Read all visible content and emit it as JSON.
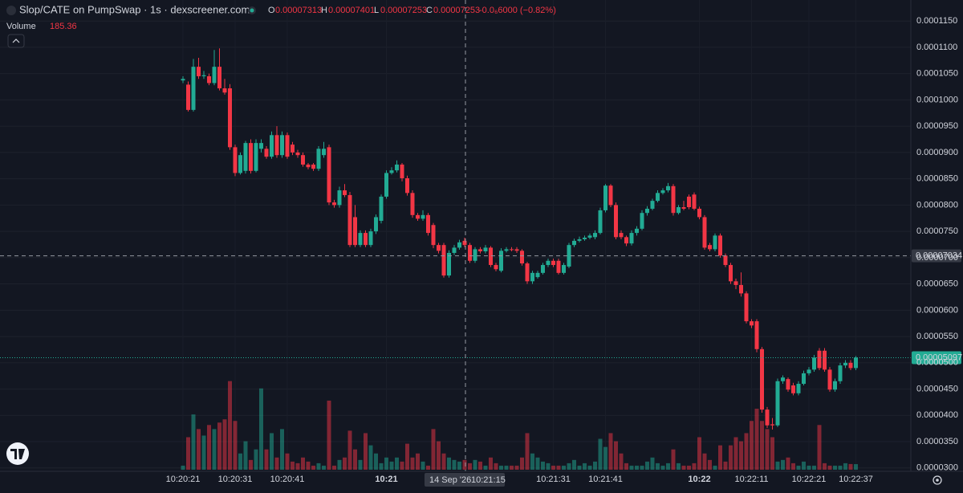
{
  "chart_data": {
    "type": "candlestick",
    "title": "Slop/CATE on PumpSwap · 1s · dexscreener.com",
    "legend": {
      "o_label": "O",
      "open": 7.313e-05,
      "h_label": "H",
      "high": 7.401e-05,
      "l_label": "L",
      "low": 7.253e-05,
      "c_label": "C",
      "close": 7.253e-05,
      "change": "-0.0₆6000 (−0.82%)"
    },
    "volume_label": "Volume",
    "categories": [
      "10:20:21",
      null,
      null,
      null,
      null,
      null,
      null,
      null,
      null,
      null,
      "10:20:31",
      null,
      null,
      null,
      null,
      null,
      null,
      null,
      null,
      null,
      "10:20:41",
      null,
      null,
      null,
      null,
      null,
      null,
      null,
      null,
      null,
      null,
      null,
      null,
      null,
      null,
      null,
      null,
      null,
      null,
      "10:21",
      null,
      null,
      null,
      null,
      null,
      null,
      null,
      null,
      null,
      null,
      null,
      null,
      null,
      null,
      null,
      null,
      null,
      null,
      null,
      null,
      null,
      null,
      null,
      null,
      null,
      null,
      null,
      null,
      null,
      null,
      null,
      "10:21:31",
      null,
      null,
      null,
      null,
      null,
      null,
      null,
      null,
      null,
      "10:21:41",
      null,
      null,
      null,
      null,
      null,
      null,
      null,
      null,
      null,
      null,
      null,
      null,
      null,
      null,
      null,
      null,
      null,
      "10:22",
      null,
      null,
      null,
      null,
      null,
      null,
      null,
      null,
      null,
      "10:22:11",
      null,
      null,
      null,
      null,
      null,
      null,
      null,
      null,
      null,
      null,
      "10:22:21",
      null,
      null,
      null,
      null,
      null,
      null,
      null,
      null,
      "10:22:37"
    ],
    "open": [
      0.0001037,
      0.0001029,
      9.81e-05,
      0.0001063,
      0.0001045,
      0.0001045,
      0.0001032,
      0.0001063,
      0.0001022,
      0.0001022,
      9.1e-05,
      8.61e-05,
      8.65e-05,
      9.18e-05,
      8.65e-05,
      9.07e-05,
      9.07e-05,
      8.92e-05,
      9.33e-05,
      8.95e-05,
      9.33e-05,
      9.15e-05,
      9e-05,
      8.95e-05,
      8.77e-05,
      8.77e-05,
      8.69e-05,
      8.95e-05,
      9.1e-05,
      8.05e-05,
      8e-05,
      8.28e-05,
      8.19e-05,
      7.77e-05,
      7.24e-05,
      7.47e-05,
      7.24e-05,
      7.5e-05,
      7.7e-05,
      8.16e-05,
      8.61e-05,
      8.66e-05,
      8.77e-05,
      8.51e-05,
      8.23e-05,
      7.81e-05,
      7.74e-05,
      7.81e-05,
      7.62e-05,
      7.24e-05,
      7.24e-05,
      6.66e-05,
      7.09e-05,
      7.19e-05,
      7.32e-05,
      7.24e-05,
      6.94e-05,
      7.16e-05,
      7.12e-05,
      7.19e-05,
      6.86e-05,
      6.75e-05,
      7.13e-05,
      7.16e-05,
      7.16e-05,
      7.13e-05,
      6.89e-05,
      6.55e-05,
      6.63e-05,
      6.71e-05,
      6.86e-05,
      6.94e-05,
      6.94e-05,
      6.71e-05,
      6.83e-05,
      7.24e-05,
      7.32e-05,
      7.35e-05,
      7.38e-05,
      7.39e-05,
      7.47e-05,
      7.9e-05,
      8.37e-05,
      8e-05,
      7.47e-05,
      7.39e-05,
      7.27e-05,
      7.47e-05,
      7.55e-05,
      7.85e-05,
      7.93e-05,
      8.08e-05,
      8.23e-05,
      8.28e-05,
      8.36e-05,
      7.85e-05,
      7.96e-05,
      8.16e-05,
      8.2e-05,
      7.93e-05,
      7.77e-05,
      7.24e-05,
      7.16e-05,
      7.42e-05,
      7.04e-05,
      6.86e-05,
      6.55e-05,
      6.48e-05,
      6.32e-05,
      5.79e-05,
      5.79e-05,
      5.26e-05,
      4.11e-05,
      3.83e-05,
      3.81e-05,
      4.65e-05,
      4.69e-05,
      4.57e-05,
      4.42e-05,
      4.6e-05,
      4.8e-05,
      4.87e-05,
      5.23e-05,
      5.23e-05,
      4.87e-05,
      4.49e-05,
      4.65e-05,
      4.95e-05,
      5e-05,
      4.9e-05
    ],
    "high": [
      0.0001045,
      0.0001035,
      0.0001078,
      0.000108,
      0.0001055,
      0.000105,
      0.0001095,
      0.0001098,
      0.000104,
      0.000103,
      9.15e-05,
      9e-05,
      9.22e-05,
      9.25e-05,
      9.25e-05,
      9.25e-05,
      9.12e-05,
      9.4e-05,
      9.5e-05,
      9.4e-05,
      9.38e-05,
      9.2e-05,
      9.05e-05,
      9e-05,
      8.8e-05,
      8.8e-05,
      9.12e-05,
      9.2e-05,
      9.15e-05,
      8.1e-05,
      8.35e-05,
      8.4e-05,
      8.25e-05,
      8e-05,
      7.52e-05,
      7.52e-05,
      7.55e-05,
      7.82e-05,
      8.2e-05,
      8.66e-05,
      8.72e-05,
      8.85e-05,
      8.8e-05,
      8.56e-05,
      8.28e-05,
      7.85e-05,
      7.9e-05,
      7.85e-05,
      7.66e-05,
      7.28e-05,
      7.28e-05,
      7.14e-05,
      7.24e-05,
      7.34e-05,
      7.38e-05,
      7.28e-05,
      7.2e-05,
      7.2e-05,
      7.24e-05,
      7.22e-05,
      6.9e-05,
      7.18e-05,
      7.2e-05,
      7.2e-05,
      7.2e-05,
      7.16e-05,
      6.92e-05,
      6.75e-05,
      6.75e-05,
      6.9e-05,
      6.98e-05,
      6.98e-05,
      6.98e-05,
      6.9e-05,
      7.28e-05,
      7.36e-05,
      7.4e-05,
      7.42e-05,
      7.46e-05,
      7.52e-05,
      7.95e-05,
      8.4e-05,
      8.4e-05,
      8.05e-05,
      7.52e-05,
      7.42e-05,
      7.52e-05,
      7.6e-05,
      7.9e-05,
      7.98e-05,
      8.12e-05,
      8.28e-05,
      8.32e-05,
      8.42e-05,
      8.4e-05,
      8e-05,
      8.08e-05,
      8.2e-05,
      8.24e-05,
      7.97e-05,
      7.81e-05,
      7.28e-05,
      7.46e-05,
      7.46e-05,
      7.08e-05,
      6.9e-05,
      6.6e-05,
      6.72e-05,
      6.36e-05,
      5.83e-05,
      5.83e-05,
      5.3e-05,
      4.16e-05,
      3.95e-05,
      4.7e-05,
      4.76e-05,
      4.72e-05,
      4.62e-05,
      4.65e-05,
      4.85e-05,
      4.92e-05,
      5.15e-05,
      5.28e-05,
      5.28e-05,
      4.92e-05,
      4.7e-05,
      5e-05,
      5.05e-05,
      5.05e-05,
      5.13e-05
    ],
    "low": [
      0.0001032,
      9.78e-05,
      9.78e-05,
      0.000104,
      0.000104,
      0.0001028,
      0.0001028,
      0.0001018,
      0.000101,
      9.05e-05,
      8.55e-05,
      8.58e-05,
      8.6e-05,
      8.6e-05,
      8.62e-05,
      9e-05,
      8.88e-05,
      8.88e-05,
      8.9e-05,
      8.9e-05,
      8.88e-05,
      8.95e-05,
      8.9e-05,
      8.73e-05,
      8.68e-05,
      8.65e-05,
      8.65e-05,
      8.9e-05,
      8e-05,
      7.95e-05,
      7.95e-05,
      8.15e-05,
      7.2e-05,
      7.2e-05,
      7.2e-05,
      7.2e-05,
      7.2e-05,
      7.45e-05,
      7.65e-05,
      8.12e-05,
      8.58e-05,
      8.62e-05,
      8.45e-05,
      8.18e-05,
      7.76e-05,
      7.7e-05,
      7.7e-05,
      7.42e-05,
      7.18e-05,
      7.08e-05,
      6.62e-05,
      6.62e-05,
      7.05e-05,
      7.15e-05,
      7.2e-05,
      6.9e-05,
      6.9e-05,
      7.08e-05,
      7.08e-05,
      6.82e-05,
      6.74e-05,
      6.72e-05,
      7.1e-05,
      7.12e-05,
      7.09e-05,
      6.85e-05,
      6.5e-05,
      6.5e-05,
      6.6e-05,
      6.68e-05,
      6.82e-05,
      6.82e-05,
      6.68e-05,
      6.68e-05,
      6.8e-05,
      7.2e-05,
      7.29e-05,
      7.32e-05,
      7.35e-05,
      7.35e-05,
      7.44e-05,
      7.86e-05,
      7.96e-05,
      7.35e-05,
      7.35e-05,
      7.22e-05,
      7.23e-05,
      7.42e-05,
      7.52e-05,
      7.8e-05,
      7.9e-05,
      8.05e-05,
      8.2e-05,
      8.24e-05,
      7.8e-05,
      7.82e-05,
      7.9e-05,
      7.92e-05,
      7.9e-05,
      7.73e-05,
      7.15e-05,
      7.12e-05,
      7.12e-05,
      7e-05,
      6.82e-05,
      6.5e-05,
      6.4e-05,
      6.26e-05,
      5.75e-05,
      5.66e-05,
      5.2e-05,
      4.05e-05,
      3.76e-05,
      3.73e-05,
      3.78e-05,
      4.6e-05,
      4.45e-05,
      4.38e-05,
      4.38e-05,
      4.57e-05,
      4.76e-05,
      4.83e-05,
      4.86e-05,
      4.83e-05,
      4.45e-05,
      4.45e-05,
      4.6e-05,
      4.9e-05,
      4.86e-05,
      4.86e-05
    ],
    "close": [
      0.000104,
      9.81e-05,
      0.0001063,
      0.0001045,
      0.0001047,
      0.0001032,
      0.0001063,
      0.0001022,
      0.0001014,
      9.1e-05,
      8.61e-05,
      8.95e-05,
      9.18e-05,
      8.65e-05,
      9.18e-05,
      9.18e-05,
      8.92e-05,
      9.33e-05,
      8.95e-05,
      9.33e-05,
      8.92e-05,
      9e-05,
      8.95e-05,
      8.77e-05,
      8.72e-05,
      8.69e-05,
      9.07e-05,
      9.07e-05,
      8.05e-05,
      8e-05,
      8.28e-05,
      8.19e-05,
      7.24e-05,
      7.24e-05,
      7.47e-05,
      7.24e-05,
      7.5e-05,
      7.77e-05,
      8.16e-05,
      8.61e-05,
      8.66e-05,
      8.77e-05,
      8.51e-05,
      8.23e-05,
      7.81e-05,
      7.74e-05,
      7.81e-05,
      7.47e-05,
      7.24e-05,
      7.13e-05,
      6.66e-05,
      7.09e-05,
      7.19e-05,
      7.29e-05,
      7.24e-05,
      6.94e-05,
      7.16e-05,
      7.12e-05,
      7.19e-05,
      6.86e-05,
      6.78e-05,
      7.13e-05,
      7.16e-05,
      7.15e-05,
      7.13e-05,
      6.89e-05,
      6.55e-05,
      6.71e-05,
      6.71e-05,
      6.86e-05,
      6.94e-05,
      6.86e-05,
      6.71e-05,
      6.86e-05,
      7.24e-05,
      7.32e-05,
      7.35e-05,
      7.38e-05,
      7.42e-05,
      7.47e-05,
      7.9e-05,
      8.37e-05,
      8e-05,
      7.39e-05,
      7.39e-05,
      7.27e-05,
      7.47e-05,
      7.55e-05,
      7.85e-05,
      7.93e-05,
      8.08e-05,
      8.23e-05,
      8.28e-05,
      8.36e-05,
      7.85e-05,
      7.96e-05,
      7.93e-05,
      7.96e-05,
      7.93e-05,
      7.77e-05,
      7.19e-05,
      7.16e-05,
      7.42e-05,
      7.04e-05,
      6.86e-05,
      6.55e-05,
      6.48e-05,
      6.32e-05,
      5.79e-05,
      5.71e-05,
      5.26e-05,
      4.11e-05,
      3.81e-05,
      3.81e-05,
      4.65e-05,
      4.72e-05,
      4.49e-05,
      4.42e-05,
      4.6e-05,
      4.8e-05,
      4.87e-05,
      5.1e-05,
      4.9e-05,
      4.87e-05,
      4.49e-05,
      4.65e-05,
      4.95e-05,
      5e-05,
      4.9e-05,
      5.1e-05
    ],
    "volume": [
      135,
      1080,
      1836,
      1350,
      1134,
      1485,
      1350,
      1566,
      1674,
      2943,
      1620,
      540,
      945,
      324,
      675,
      2700,
      675,
      1215,
      405,
      1350,
      540,
      270,
      216,
      405,
      270,
      135,
      216,
      135,
      2295,
      135,
      324,
      405,
      1296,
      675,
      324,
      1215,
      810,
      540,
      216,
      405,
      270,
      405,
      270,
      864,
      405,
      540,
      270,
      135,
      1350,
      945,
      540,
      405,
      324,
      270,
      324,
      216,
      324,
      270,
      135,
      405,
      216,
      135,
      135,
      135,
      135,
      405,
      1215,
      540,
      405,
      270,
      216,
      135,
      135,
      135,
      216,
      324,
      135,
      216,
      135,
      270,
      1026,
      756,
      1215,
      945,
      540,
      216,
      135,
      135,
      135,
      270,
      405,
      216,
      135,
      216,
      675,
      216,
      135,
      135,
      216,
      1080,
      540,
      324,
      135,
      810,
      270,
      810,
      1080,
      945,
      1215,
      1620,
      2025,
      1620,
      1350,
      1080,
      270,
      324,
      405,
      216,
      135,
      270,
      135,
      135,
      1485,
      216,
      135,
      135,
      135,
      216,
      189,
      185.36
    ],
    "up_color": "#22ab94",
    "down_color": "#f23645",
    "ylim": [
      2.89e-05,
      0.000119
    ],
    "yticks": [
      {
        "value": 3e-05,
        "label": "0.0000300"
      },
      {
        "value": 3.5e-05,
        "label": "0.0000350"
      },
      {
        "value": 4e-05,
        "label": "0.0000400"
      },
      {
        "value": 4.5e-05,
        "label": "0.0000450"
      },
      {
        "value": 5e-05,
        "label": "0.0000500"
      },
      {
        "value": 5.5e-05,
        "label": "0.0000550"
      },
      {
        "value": 6e-05,
        "label": "0.0000600"
      },
      {
        "value": 6.5e-05,
        "label": "0.0000650"
      },
      {
        "value": 7e-05,
        "label": "0.0000700"
      },
      {
        "value": 7.5e-05,
        "label": "0.0000750"
      },
      {
        "value": 8e-05,
        "label": "0.0000800"
      },
      {
        "value": 8.5e-05,
        "label": "0.0000850"
      },
      {
        "value": 9e-05,
        "label": "0.0000900"
      },
      {
        "value": 9.5e-05,
        "label": "0.0000950"
      },
      {
        "value": 0.0001,
        "label": "0.0001000"
      },
      {
        "value": 0.000105,
        "label": "0.0001050"
      },
      {
        "value": 0.00011,
        "label": "0.0001100"
      },
      {
        "value": 0.000115,
        "label": "0.0001150"
      }
    ],
    "volume_ylim": [
      0,
      4000
    ],
    "grid": true,
    "last_price": 5.097e-05,
    "crosshair": {
      "price": 7.034e-05,
      "date": "14 Sep '26",
      "time": "10:21:15"
    }
  }
}
